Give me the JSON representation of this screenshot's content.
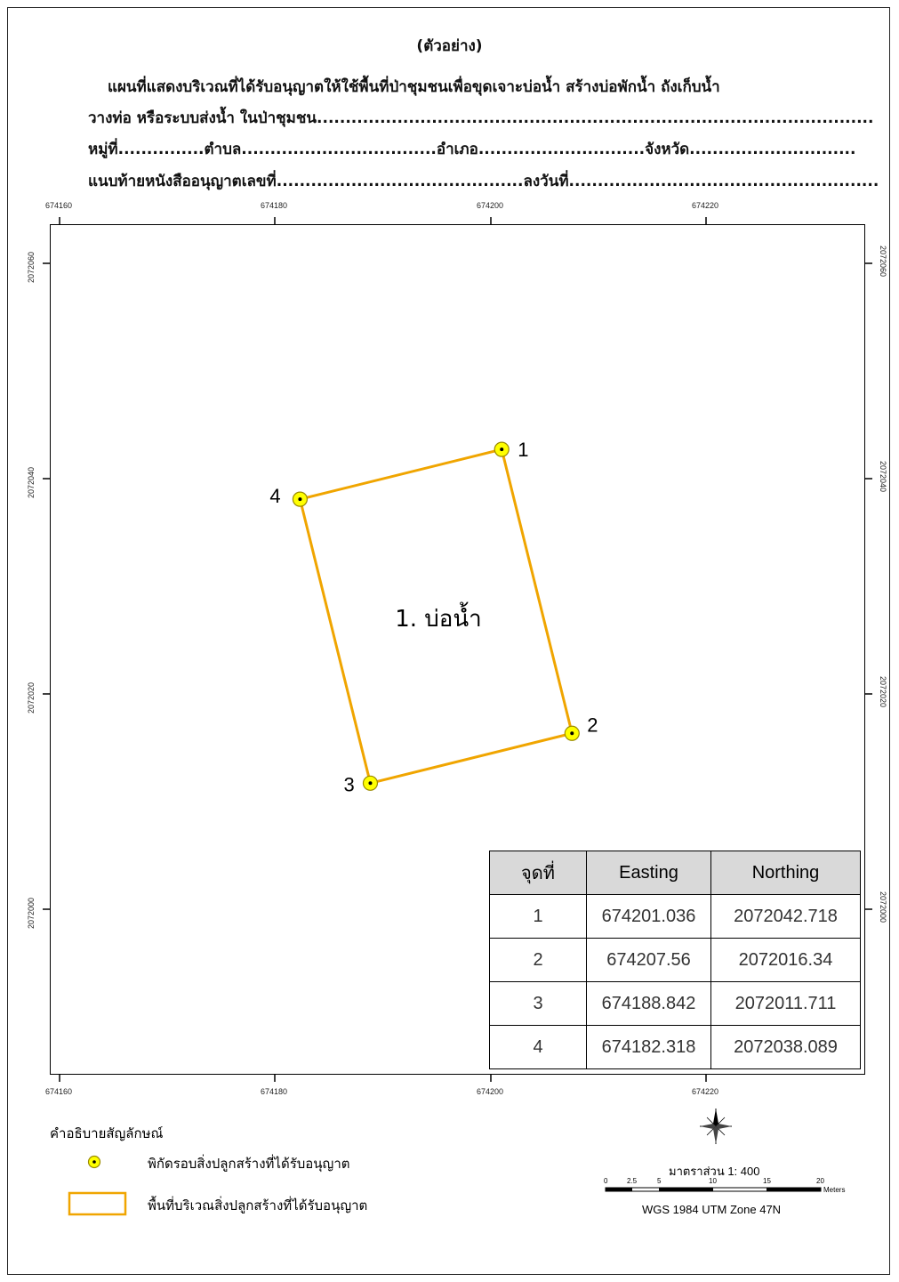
{
  "header": {
    "sample": "(ตัวอย่าง)",
    "line1": "แผนที่แสดงบริเวณที่ได้รับอนุญาตให้ใช้พื้นที่ป่าชุมชนเพื่อขุดเจาะบ่อน้ำ สร้างบ่อพักน้ำ ถังเก็บน้ำ",
    "line2": "วางท่อ หรือระบบส่งน้ำ ในป่าชุมชน.................................................................................................",
    "line3": "หมู่ที่...............ตำบล..................................อำเภอ.............................จังหวัด.............................",
    "line4": "แนบท้ายหนังสืออนุญาตเลขที่...........................................ลงวันที่......................................................"
  },
  "map": {
    "x_ticks": [
      "674160",
      "674180",
      "674200",
      "674220"
    ],
    "y_ticks": [
      "2072060",
      "2072040",
      "2072020",
      "2072000"
    ],
    "points": [
      {
        "label": "1",
        "easting": 674201.036,
        "northing": 2072042.718
      },
      {
        "label": "2",
        "easting": 674207.56,
        "northing": 2072016.34
      },
      {
        "label": "3",
        "easting": 674188.842,
        "northing": 2072011.711
      },
      {
        "label": "4",
        "easting": 674182.318,
        "northing": 2072038.089
      }
    ],
    "area_label": "1. บ่อน้ำ",
    "polygon_color": "#f0a500",
    "point_color": "#ffff00"
  },
  "table": {
    "headers": [
      "จุดที่",
      "Easting",
      "Northing"
    ],
    "rows": [
      [
        "1",
        "674201.036",
        "2072042.718"
      ],
      [
        "2",
        "674207.56",
        "2072016.34"
      ],
      [
        "3",
        "674188.842",
        "2072011.711"
      ],
      [
        "4",
        "674182.318",
        "2072038.089"
      ]
    ]
  },
  "legend": {
    "title": "คำอธิบายสัญลักษณ์",
    "point_item": "พิกัดรอบสิ่งปลูกสร้างที่ได้รับอนุญาต",
    "area_item": "พื้นที่บริเวณสิ่งปลูกสร้างที่ได้รับอนุญาต"
  },
  "scale": {
    "label": "มาตราส่วน 1: 400",
    "ticks": [
      "0",
      "2.5",
      "5",
      "10",
      "15",
      "20"
    ],
    "unit": "Meters",
    "projection": "WGS 1984 UTM Zone 47N"
  }
}
